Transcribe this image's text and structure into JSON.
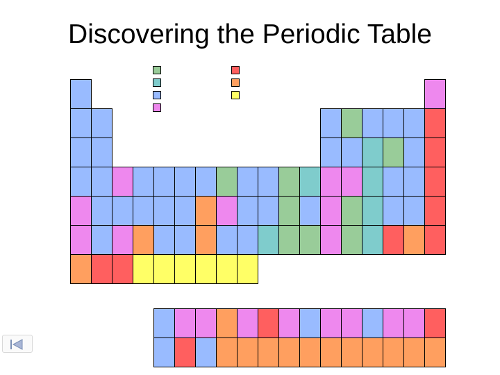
{
  "title": "Discovering the Periodic Table",
  "colors": {
    "B": "#99bbff",
    "G": "#99cc99",
    "T": "#7fcccc",
    "P": "#ee88ee",
    "R": "#ff5f5f",
    "O": "#ff9f5f",
    "Y": "#ffff66"
  },
  "legend_keys": [
    [
      "G",
      "T",
      "B",
      "P"
    ],
    [
      "R",
      "O",
      "Y"
    ]
  ],
  "main_rows": [
    "B................P",
    "BB..........BGBBBR",
    "BB..........BBTGBR",
    "BBPBBBBGBBGTPPTBBR",
    "PBBBBBOPBBGBPGTBBR",
    "PBPOBBOBBTGGPGTROR",
    "ORRYYYYYY........."
  ],
  "f_rows": [
    "BPPOPRPBPPBPPR",
    "BRBOOOOOOOOOOO"
  ],
  "nav": {
    "back_icon": "back-arrow-icon"
  }
}
